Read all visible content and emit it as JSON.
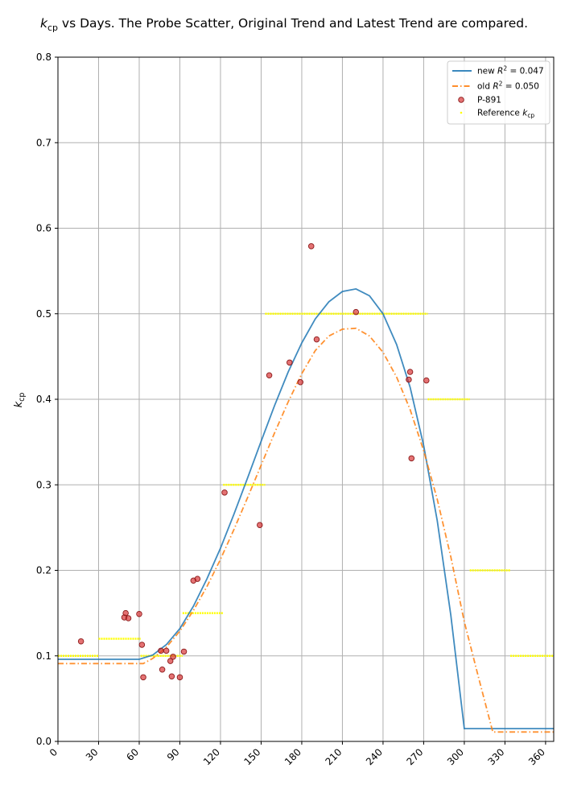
{
  "chart_data": {
    "type": "line",
    "title": "k_cp vs Days.  The Probe Scatter, Original Trend and Latest Trend are compared.",
    "title_parts": {
      "symbol": "k",
      "subscript": "cp",
      "rest": " vs Days.  The Probe Scatter, Original Trend and Latest Trend are compared."
    },
    "xlabel": "",
    "ylabel": "k_cp",
    "ylabel_parts": {
      "symbol": "k",
      "subscript": "cp"
    },
    "xlim": [
      0,
      366
    ],
    "ylim": [
      0,
      0.8
    ],
    "xticks": [
      0,
      30,
      60,
      90,
      120,
      150,
      180,
      210,
      240,
      270,
      300,
      330,
      360
    ],
    "yticks": [
      "0.0",
      "0.1",
      "0.2",
      "0.3",
      "0.4",
      "0.5",
      "0.6",
      "0.7",
      "0.8"
    ],
    "grid": true,
    "legend_position": "top-right",
    "series": [
      {
        "name": "new R^2 = 0.047",
        "legend_parts": {
          "prefix": "new ",
          "symbol": "R",
          "sup": "2",
          "suffix": " = 0.047"
        },
        "kind": "line",
        "color": "#1f77b4",
        "style": "solid",
        "x": [
          0,
          60,
          70,
          80,
          90,
          100,
          110,
          120,
          130,
          140,
          150,
          160,
          170,
          180,
          190,
          200,
          210,
          220,
          230,
          240,
          250,
          260,
          270,
          280,
          290,
          300,
          310,
          330,
          366
        ],
        "y": [
          0.096,
          0.096,
          0.101,
          0.113,
          0.132,
          0.158,
          0.19,
          0.226,
          0.266,
          0.308,
          0.351,
          0.393,
          0.432,
          0.466,
          0.494,
          0.514,
          0.526,
          0.529,
          0.521,
          0.5,
          0.464,
          0.414,
          0.346,
          0.258,
          0.148,
          0.015,
          0.015,
          0.015,
          0.015
        ]
      },
      {
        "name": "old R^2 = 0.050",
        "legend_parts": {
          "prefix": "old ",
          "symbol": "R",
          "sup": "2",
          "suffix": " = 0.050"
        },
        "kind": "line",
        "color": "#ff7f0e",
        "style": "dashdot",
        "x": [
          0,
          63,
          70,
          80,
          90,
          100,
          110,
          120,
          130,
          140,
          150,
          160,
          170,
          180,
          190,
          200,
          210,
          220,
          230,
          240,
          250,
          260,
          270,
          280,
          290,
          300,
          310,
          321,
          330,
          366
        ],
        "y": [
          0.091,
          0.091,
          0.097,
          0.11,
          0.129,
          0.153,
          0.181,
          0.213,
          0.248,
          0.285,
          0.323,
          0.361,
          0.397,
          0.43,
          0.457,
          0.474,
          0.482,
          0.483,
          0.474,
          0.455,
          0.426,
          0.388,
          0.34,
          0.283,
          0.216,
          0.14,
          0.078,
          0.011,
          0.011,
          0.011
        ]
      },
      {
        "name": "P-891",
        "kind": "scatter",
        "color": "#d62728",
        "points": [
          [
            17,
            0.117
          ],
          [
            49,
            0.145
          ],
          [
            50,
            0.15
          ],
          [
            52,
            0.144
          ],
          [
            60,
            0.149
          ],
          [
            62,
            0.113
          ],
          [
            63,
            0.075
          ],
          [
            76,
            0.106
          ],
          [
            77,
            0.084
          ],
          [
            80,
            0.106
          ],
          [
            83,
            0.094
          ],
          [
            84,
            0.076
          ],
          [
            85,
            0.099
          ],
          [
            90,
            0.075
          ],
          [
            93,
            0.105
          ],
          [
            100,
            0.188
          ],
          [
            103,
            0.19
          ],
          [
            123,
            0.291
          ],
          [
            149,
            0.253
          ],
          [
            156,
            0.428
          ],
          [
            171,
            0.443
          ],
          [
            179,
            0.42
          ],
          [
            187,
            0.579
          ],
          [
            191,
            0.47
          ],
          [
            220,
            0.502
          ],
          [
            259,
            0.423
          ],
          [
            260,
            0.432
          ],
          [
            261,
            0.331
          ],
          [
            272,
            0.422
          ]
        ]
      },
      {
        "name": "Reference k_cp",
        "legend_parts": {
          "prefix": "Reference ",
          "symbol": "k",
          "sub": "cp"
        },
        "kind": "segments",
        "color": "#ffff00",
        "segments": [
          [
            0,
            30,
            0.1
          ],
          [
            30,
            61,
            0.12
          ],
          [
            61,
            92,
            0.1
          ],
          [
            92,
            122,
            0.15
          ],
          [
            122,
            153,
            0.3
          ],
          [
            153,
            273,
            0.5
          ],
          [
            273,
            304,
            0.4
          ],
          [
            304,
            334,
            0.2
          ],
          [
            334,
            366,
            0.1
          ]
        ]
      }
    ]
  }
}
